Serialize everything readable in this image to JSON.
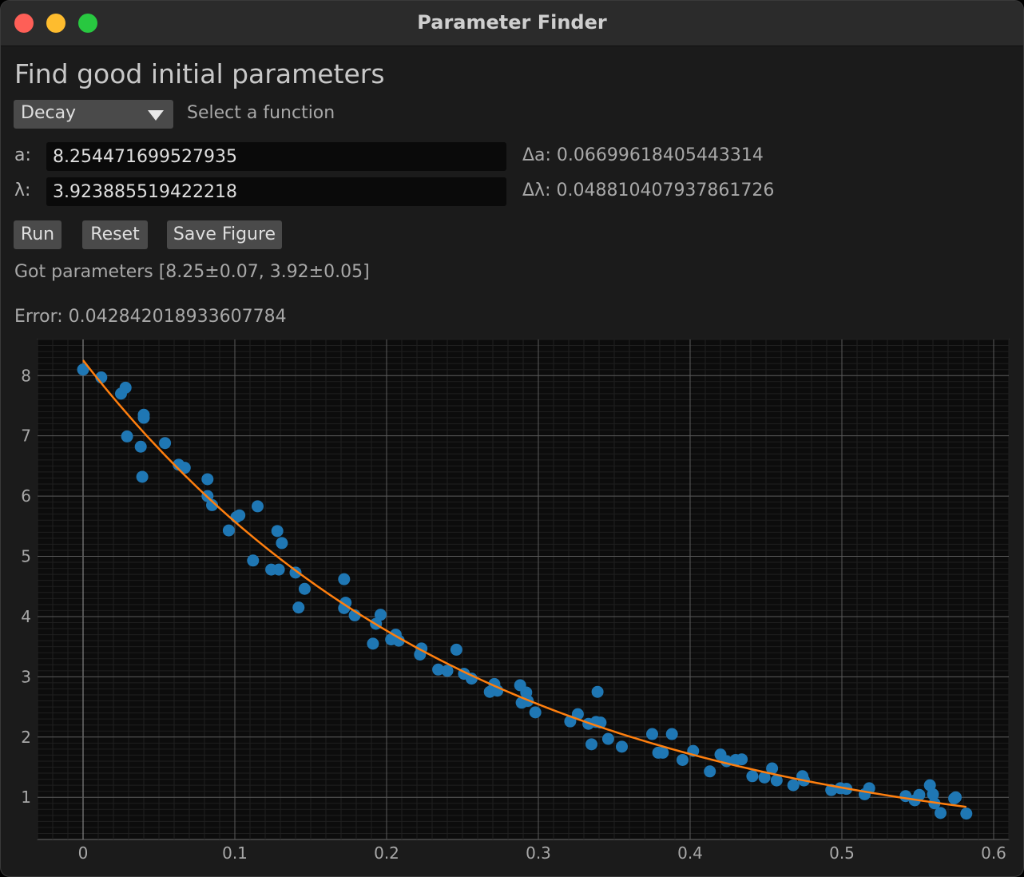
{
  "window": {
    "title": "Parameter Finder"
  },
  "heading": "Find good initial parameters",
  "function_select": {
    "value": "Decay",
    "hint": "Select a function"
  },
  "params": [
    {
      "label": "a:",
      "value": "8.254471699527935",
      "delta": "Δa: 0.06699618405443314"
    },
    {
      "label": "λ:",
      "value": "3.923885519422218",
      "delta": "Δλ: 0.048810407937861726"
    }
  ],
  "buttons": {
    "run": "Run",
    "reset": "Reset",
    "save": "Save Figure"
  },
  "result_text": "Got parameters [8.25±0.07, 3.92±0.05]",
  "error_text": "Error: 0.042842018933607784",
  "colors": {
    "points": "#1f77b4",
    "fit": "#ff7f0e",
    "grid": "#5a5a5a",
    "plot_bg": "#0c0c0c"
  },
  "chart_data": {
    "type": "scatter",
    "xlim": [
      -0.03,
      0.61
    ],
    "ylim": [
      0.3,
      8.6
    ],
    "xticks": [
      0,
      0.1,
      0.2,
      0.3,
      0.4,
      0.5,
      0.6
    ],
    "xtick_labels": [
      "0",
      "0.1",
      "0.2",
      "0.3",
      "0.4",
      "0.5",
      "0.6"
    ],
    "yticks": [
      1,
      2,
      3,
      4,
      5,
      6,
      7,
      8
    ],
    "ytick_labels": [
      "1",
      "2",
      "3",
      "4",
      "5",
      "6",
      "7",
      "8"
    ],
    "grid": true,
    "series": [
      {
        "kind": "points",
        "points": [
          [
            0.0,
            8.1
          ],
          [
            0.012,
            7.97
          ],
          [
            0.025,
            7.7
          ],
          [
            0.028,
            7.8
          ],
          [
            0.029,
            6.99
          ],
          [
            0.038,
            6.82
          ],
          [
            0.039,
            6.32
          ],
          [
            0.04,
            7.35
          ],
          [
            0.04,
            7.3
          ],
          [
            0.054,
            6.88
          ],
          [
            0.063,
            6.52
          ],
          [
            0.067,
            6.47
          ],
          [
            0.082,
            6.0
          ],
          [
            0.082,
            6.28
          ],
          [
            0.085,
            5.85
          ],
          [
            0.096,
            5.43
          ],
          [
            0.101,
            5.65
          ],
          [
            0.103,
            5.68
          ],
          [
            0.112,
            4.93
          ],
          [
            0.115,
            5.83
          ],
          [
            0.124,
            4.78
          ],
          [
            0.128,
            5.42
          ],
          [
            0.129,
            4.78
          ],
          [
            0.131,
            5.22
          ],
          [
            0.14,
            4.73
          ],
          [
            0.142,
            4.15
          ],
          [
            0.146,
            4.46
          ],
          [
            0.172,
            4.62
          ],
          [
            0.172,
            4.14
          ],
          [
            0.173,
            4.23
          ],
          [
            0.179,
            4.02
          ],
          [
            0.191,
            3.55
          ],
          [
            0.193,
            3.88
          ],
          [
            0.196,
            4.03
          ],
          [
            0.203,
            3.62
          ],
          [
            0.206,
            3.7
          ],
          [
            0.208,
            3.6
          ],
          [
            0.222,
            3.37
          ],
          [
            0.223,
            3.47
          ],
          [
            0.234,
            3.12
          ],
          [
            0.24,
            3.1
          ],
          [
            0.246,
            3.45
          ],
          [
            0.251,
            3.05
          ],
          [
            0.256,
            2.97
          ],
          [
            0.268,
            2.75
          ],
          [
            0.271,
            2.88
          ],
          [
            0.273,
            2.77
          ],
          [
            0.288,
            2.86
          ],
          [
            0.289,
            2.57
          ],
          [
            0.292,
            2.74
          ],
          [
            0.293,
            2.6
          ],
          [
            0.298,
            2.41
          ],
          [
            0.321,
            2.26
          ],
          [
            0.326,
            2.38
          ],
          [
            0.333,
            2.22
          ],
          [
            0.335,
            1.88
          ],
          [
            0.338,
            2.25
          ],
          [
            0.339,
            2.75
          ],
          [
            0.341,
            2.24
          ],
          [
            0.346,
            1.97
          ],
          [
            0.355,
            1.84
          ],
          [
            0.375,
            2.05
          ],
          [
            0.379,
            1.74
          ],
          [
            0.382,
            1.74
          ],
          [
            0.388,
            2.05
          ],
          [
            0.395,
            1.62
          ],
          [
            0.402,
            1.77
          ],
          [
            0.413,
            1.43
          ],
          [
            0.42,
            1.71
          ],
          [
            0.424,
            1.6
          ],
          [
            0.43,
            1.62
          ],
          [
            0.434,
            1.63
          ],
          [
            0.441,
            1.35
          ],
          [
            0.449,
            1.33
          ],
          [
            0.454,
            1.48
          ],
          [
            0.457,
            1.28
          ],
          [
            0.468,
            1.2
          ],
          [
            0.474,
            1.35
          ],
          [
            0.475,
            1.28
          ],
          [
            0.493,
            1.12
          ],
          [
            0.499,
            1.15
          ],
          [
            0.503,
            1.14
          ],
          [
            0.515,
            1.05
          ],
          [
            0.518,
            1.15
          ],
          [
            0.542,
            1.02
          ],
          [
            0.548,
            0.95
          ],
          [
            0.551,
            1.04
          ],
          [
            0.558,
            1.2
          ],
          [
            0.56,
            1.05
          ],
          [
            0.561,
            0.9
          ],
          [
            0.565,
            0.74
          ],
          [
            0.574,
            0.98
          ],
          [
            0.575,
            1.0
          ],
          [
            0.582,
            0.73
          ]
        ]
      },
      {
        "kind": "fit",
        "function": "a*exp(-λ*x)",
        "a": 8.254471699527935,
        "lambda": 3.923885519422218,
        "x_range": [
          0.0,
          0.582
        ]
      }
    ]
  }
}
